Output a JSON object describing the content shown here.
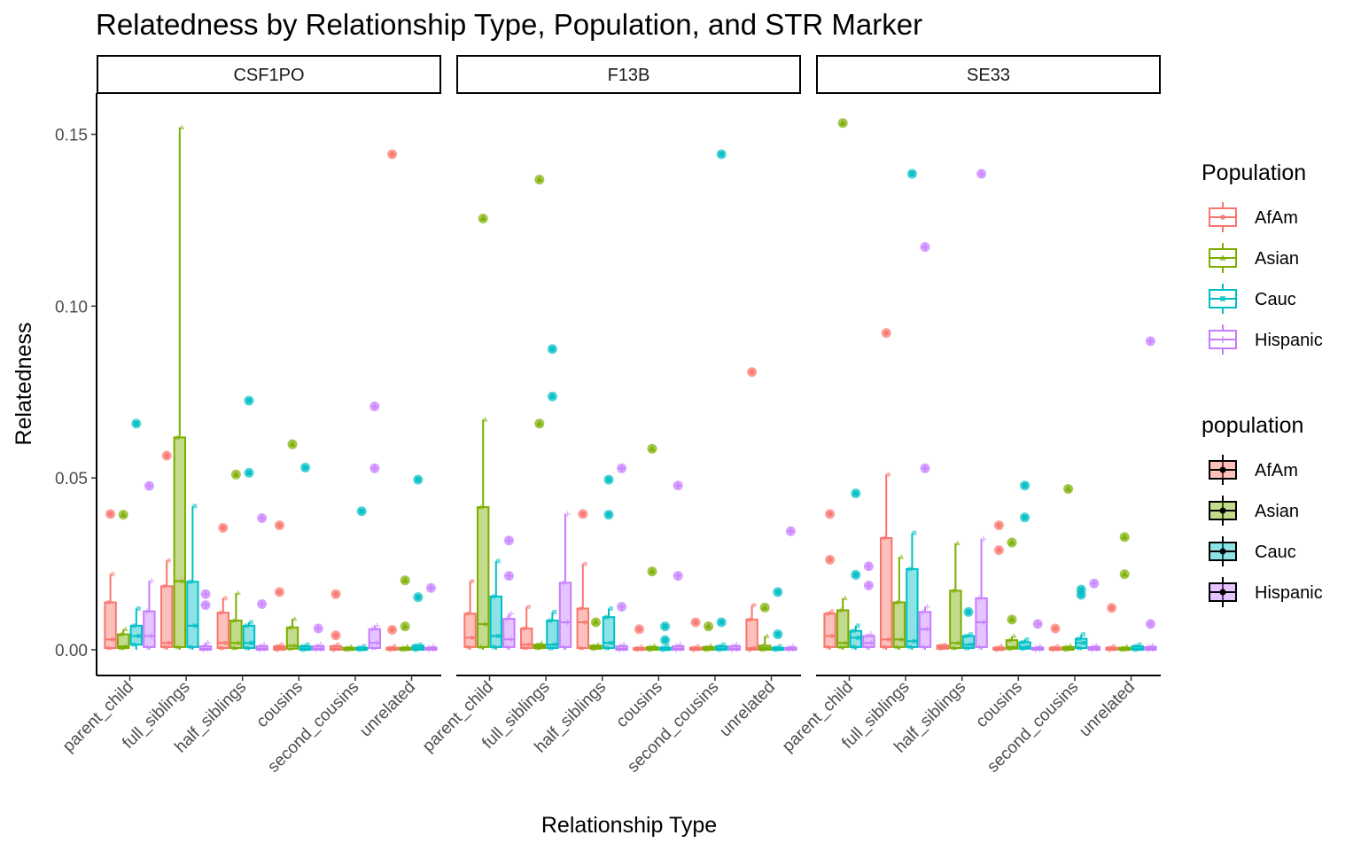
{
  "chart_data": {
    "type": "boxplot",
    "title": "Relatedness by Relationship Type, Population, and STR Marker",
    "xlabel": "Relationship Type",
    "ylabel": "Relatedness",
    "ylim": [
      -0.007,
      0.16
    ],
    "yticks": [
      0.0,
      0.05,
      0.1,
      0.15
    ],
    "ytick_labels": [
      "0.00",
      "0.05",
      "0.10",
      "0.15"
    ],
    "categories": [
      "parent_child",
      "full_siblings",
      "half_siblings",
      "cousins",
      "second_cousins",
      "unrelated"
    ],
    "populations": [
      "AfAm",
      "Asian",
      "Cauc",
      "Hispanic"
    ],
    "colors": {
      "AfAm": "#F8766D",
      "Asian": "#7CAE00",
      "Cauc": "#00BFC4",
      "Hispanic": "#C77CFF"
    },
    "legends": [
      {
        "title": "Population",
        "labels": [
          "AfAm",
          "Asian",
          "Cauc",
          "Hispanic"
        ]
      },
      {
        "title": "population",
        "labels": [
          "AfAm",
          "Asian",
          "Cauc",
          "Hispanic"
        ]
      }
    ],
    "grid": false,
    "legend_position": "right",
    "panels": [
      {
        "marker": "CSF1PO",
        "groups": [
          [
            {
              "q1": 0.0005,
              "median": 0.003,
              "q3": 0.0138,
              "wlow": 0.0,
              "whigh": 0.022,
              "outliers": [
                0.0395
              ]
            },
            {
              "q1": 0.0005,
              "median": 0.001,
              "q3": 0.0045,
              "wlow": 0.0,
              "whigh": 0.006,
              "outliers": [
                0.0393
              ]
            },
            {
              "q1": 0.0015,
              "median": 0.004,
              "q3": 0.007,
              "wlow": 0.0,
              "whigh": 0.012,
              "outliers": [
                0.0658
              ]
            },
            {
              "q1": 0.0008,
              "median": 0.004,
              "q3": 0.0112,
              "wlow": 0.0,
              "whigh": 0.02,
              "outliers": [
                0.0477
              ]
            }
          ],
          [
            {
              "q1": 0.0008,
              "median": 0.002,
              "q3": 0.0185,
              "wlow": 0.0,
              "whigh": 0.026,
              "outliers": [
                0.0565
              ]
            },
            {
              "q1": 0.0008,
              "median": 0.02,
              "q3": 0.0618,
              "wlow": 0.0,
              "whigh": 0.152,
              "outliers": []
            },
            {
              "q1": 0.0008,
              "median": 0.007,
              "q3": 0.0198,
              "wlow": 0.0,
              "whigh": 0.0418,
              "outliers": []
            },
            {
              "q1": 0.0,
              "median": 0.0003,
              "q3": 0.001,
              "wlow": 0.0,
              "whigh": 0.002,
              "outliers": [
                0.0162,
                0.013
              ]
            }
          ],
          [
            {
              "q1": 0.0005,
              "median": 0.002,
              "q3": 0.0108,
              "wlow": 0.0,
              "whigh": 0.015,
              "outliers": [
                0.0355
              ]
            },
            {
              "q1": 0.0005,
              "median": 0.002,
              "q3": 0.0085,
              "wlow": 0.0,
              "whigh": 0.0165,
              "outliers": [
                0.051
              ]
            },
            {
              "q1": 0.0005,
              "median": 0.002,
              "q3": 0.007,
              "wlow": 0.0,
              "whigh": 0.008,
              "outliers": [
                0.0725,
                0.0515
              ]
            },
            {
              "q1": 0.0,
              "median": 0.0003,
              "q3": 0.001,
              "wlow": 0.0,
              "whigh": 0.0015,
              "outliers": [
                0.0383,
                0.0133
              ]
            }
          ],
          [
            {
              "q1": 0.0,
              "median": 0.0005,
              "q3": 0.001,
              "wlow": 0.0,
              "whigh": 0.0015,
              "outliers": [
                0.0362,
                0.0168
              ]
            },
            {
              "q1": 0.0003,
              "median": 0.0012,
              "q3": 0.0065,
              "wlow": 0.0,
              "whigh": 0.009,
              "outliers": [
                0.0598
              ]
            },
            {
              "q1": 0.0,
              "median": 0.0003,
              "q3": 0.001,
              "wlow": 0.0,
              "whigh": 0.0015,
              "outliers": [
                0.053
              ]
            },
            {
              "q1": 0.0,
              "median": 0.0003,
              "q3": 0.001,
              "wlow": 0.0,
              "whigh": 0.0015,
              "outliers": [
                0.0062
              ]
            }
          ],
          [
            {
              "q1": 0.0,
              "median": 0.0003,
              "q3": 0.001,
              "wlow": 0.0,
              "whigh": 0.0015,
              "outliers": [
                0.0162,
                0.0042
              ]
            },
            {
              "q1": 0.0,
              "median": 0.0002,
              "q3": 0.0006,
              "wlow": 0.0,
              "whigh": 0.001,
              "outliers": []
            },
            {
              "q1": 0.0,
              "median": 0.0002,
              "q3": 0.0006,
              "wlow": 0.0,
              "whigh": 0.001,
              "outliers": [
                0.0403
              ]
            },
            {
              "q1": 0.0005,
              "median": 0.002,
              "q3": 0.006,
              "wlow": 0.0,
              "whigh": 0.007,
              "outliers": [
                0.0708,
                0.0528
              ]
            }
          ],
          [
            {
              "q1": 0.0,
              "median": 0.0002,
              "q3": 0.0006,
              "wlow": 0.0,
              "whigh": 0.001,
              "outliers": [
                0.1442,
                0.0058
              ]
            },
            {
              "q1": 0.0,
              "median": 0.0002,
              "q3": 0.0006,
              "wlow": 0.0,
              "whigh": 0.001,
              "outliers": [
                0.0202,
                0.0068
              ]
            },
            {
              "q1": 0.0,
              "median": 0.0005,
              "q3": 0.0012,
              "wlow": 0.0,
              "whigh": 0.0015,
              "outliers": [
                0.0495,
                0.0153
              ]
            },
            {
              "q1": 0.0,
              "median": 0.0002,
              "q3": 0.0006,
              "wlow": 0.0,
              "whigh": 0.001,
              "outliers": [
                0.018
              ]
            }
          ]
        ]
      },
      {
        "marker": "F13B",
        "groups": [
          [
            {
              "q1": 0.0008,
              "median": 0.0035,
              "q3": 0.0105,
              "wlow": 0.0,
              "whigh": 0.02,
              "outliers": []
            },
            {
              "q1": 0.0008,
              "median": 0.0075,
              "q3": 0.0415,
              "wlow": 0.0,
              "whigh": 0.067,
              "outliers": [
                0.1255
              ]
            },
            {
              "q1": 0.0008,
              "median": 0.004,
              "q3": 0.0155,
              "wlow": 0.0,
              "whigh": 0.0258,
              "outliers": []
            },
            {
              "q1": 0.0008,
              "median": 0.003,
              "q3": 0.009,
              "wlow": 0.0,
              "whigh": 0.0105,
              "outliers": [
                0.0318,
                0.0215
              ]
            }
          ],
          [
            {
              "q1": 0.0005,
              "median": 0.0015,
              "q3": 0.0062,
              "wlow": 0.0,
              "whigh": 0.0125,
              "outliers": []
            },
            {
              "q1": 0.0005,
              "median": 0.001,
              "q3": 0.0015,
              "wlow": 0.0,
              "whigh": 0.002,
              "outliers": [
                0.1368,
                0.0658
              ]
            },
            {
              "q1": 0.0005,
              "median": 0.0015,
              "q3": 0.0085,
              "wlow": 0.0,
              "whigh": 0.011,
              "outliers": [
                0.0875,
                0.0737
              ]
            },
            {
              "q1": 0.0008,
              "median": 0.008,
              "q3": 0.0195,
              "wlow": 0.0,
              "whigh": 0.0395,
              "outliers": []
            }
          ],
          [
            {
              "q1": 0.0005,
              "median": 0.008,
              "q3": 0.012,
              "wlow": 0.0,
              "whigh": 0.025,
              "outliers": [
                0.0395
              ]
            },
            {
              "q1": 0.0003,
              "median": 0.0008,
              "q3": 0.0012,
              "wlow": 0.0,
              "whigh": 0.0015,
              "outliers": [
                0.008
              ]
            },
            {
              "q1": 0.0005,
              "median": 0.002,
              "q3": 0.0095,
              "wlow": 0.0,
              "whigh": 0.012,
              "outliers": [
                0.0495,
                0.0393
              ]
            },
            {
              "q1": 0.0,
              "median": 0.0003,
              "q3": 0.001,
              "wlow": 0.0,
              "whigh": 0.0015,
              "outliers": [
                0.0528,
                0.0125
              ]
            }
          ],
          [
            {
              "q1": 0.0,
              "median": 0.0002,
              "q3": 0.0005,
              "wlow": 0.0,
              "whigh": 0.0008,
              "outliers": [
                0.006
              ]
            },
            {
              "q1": 0.0,
              "median": 0.0003,
              "q3": 0.0008,
              "wlow": 0.0,
              "whigh": 0.0012,
              "outliers": [
                0.0585,
                0.0228
              ]
            },
            {
              "q1": 0.0,
              "median": 0.0002,
              "q3": 0.0006,
              "wlow": 0.0,
              "whigh": 0.001,
              "outliers": [
                0.0068,
                0.0028
              ]
            },
            {
              "q1": 0.0,
              "median": 0.0003,
              "q3": 0.001,
              "wlow": 0.0,
              "whigh": 0.0015,
              "outliers": [
                0.0478,
                0.0215
              ]
            }
          ],
          [
            {
              "q1": 0.0,
              "median": 0.0002,
              "q3": 0.0006,
              "wlow": 0.0,
              "whigh": 0.001,
              "outliers": [
                0.008
              ]
            },
            {
              "q1": 0.0,
              "median": 0.0003,
              "q3": 0.0008,
              "wlow": 0.0,
              "whigh": 0.0012,
              "outliers": [
                0.0068
              ]
            },
            {
              "q1": 0.0,
              "median": 0.0003,
              "q3": 0.001,
              "wlow": 0.0,
              "whigh": 0.0015,
              "outliers": [
                0.1442,
                0.008
              ]
            },
            {
              "q1": 0.0,
              "median": 0.0003,
              "q3": 0.001,
              "wlow": 0.0,
              "whigh": 0.0015,
              "outliers": []
            }
          ],
          [
            {
              "q1": 0.0,
              "median": 0.0005,
              "q3": 0.0088,
              "wlow": 0.0,
              "whigh": 0.013,
              "outliers": [
                0.0808
              ]
            },
            {
              "q1": 0.0,
              "median": 0.0005,
              "q3": 0.0012,
              "wlow": 0.0,
              "whigh": 0.004,
              "outliers": [
                0.0123
              ]
            },
            {
              "q1": 0.0,
              "median": 0.0002,
              "q3": 0.0006,
              "wlow": 0.0,
              "whigh": 0.001,
              "outliers": [
                0.0168,
                0.0045
              ]
            },
            {
              "q1": 0.0,
              "median": 0.0002,
              "q3": 0.0006,
              "wlow": 0.0,
              "whigh": 0.001,
              "outliers": [
                0.0345
              ]
            }
          ]
        ]
      },
      {
        "marker": "SE33",
        "groups": [
          [
            {
              "q1": 0.0008,
              "median": 0.004,
              "q3": 0.0105,
              "wlow": 0.0,
              "whigh": 0.0112,
              "outliers": [
                0.0395,
                0.0262
              ]
            },
            {
              "q1": 0.0008,
              "median": 0.002,
              "q3": 0.0115,
              "wlow": 0.0,
              "whigh": 0.015,
              "outliers": [
                0.1533
              ]
            },
            {
              "q1": 0.0008,
              "median": 0.0035,
              "q3": 0.0055,
              "wlow": 0.0,
              "whigh": 0.007,
              "outliers": [
                0.0455,
                0.0218
              ]
            },
            {
              "q1": 0.0008,
              "median": 0.002,
              "q3": 0.004,
              "wlow": 0.0,
              "whigh": 0.0045,
              "outliers": [
                0.0243,
                0.0187
              ]
            }
          ],
          [
            {
              "q1": 0.0008,
              "median": 0.003,
              "q3": 0.0325,
              "wlow": 0.0,
              "whigh": 0.051,
              "outliers": [
                0.0922
              ]
            },
            {
              "q1": 0.0008,
              "median": 0.003,
              "q3": 0.0138,
              "wlow": 0.0,
              "whigh": 0.027,
              "outliers": []
            },
            {
              "q1": 0.0008,
              "median": 0.0025,
              "q3": 0.0235,
              "wlow": 0.0,
              "whigh": 0.034,
              "outliers": [
                0.1385
              ]
            },
            {
              "q1": 0.0008,
              "median": 0.006,
              "q3": 0.011,
              "wlow": 0.0,
              "whigh": 0.0125,
              "outliers": [
                0.1172,
                0.0528
              ]
            }
          ],
          [
            {
              "q1": 0.0003,
              "median": 0.0008,
              "q3": 0.0012,
              "wlow": 0.0,
              "whigh": 0.0015,
              "outliers": []
            },
            {
              "q1": 0.0005,
              "median": 0.002,
              "q3": 0.0172,
              "wlow": 0.0,
              "whigh": 0.031,
              "outliers": []
            },
            {
              "q1": 0.0005,
              "median": 0.0015,
              "q3": 0.004,
              "wlow": 0.0,
              "whigh": 0.0045,
              "outliers": [
                0.011
              ]
            },
            {
              "q1": 0.0008,
              "median": 0.008,
              "q3": 0.015,
              "wlow": 0.0,
              "whigh": 0.0322,
              "outliers": [
                0.1385
              ]
            }
          ],
          [
            {
              "q1": 0.0,
              "median": 0.0002,
              "q3": 0.0006,
              "wlow": 0.0,
              "whigh": 0.001,
              "outliers": [
                0.0362,
                0.029
              ]
            },
            {
              "q1": 0.0003,
              "median": 0.0008,
              "q3": 0.0028,
              "wlow": 0.0,
              "whigh": 0.004,
              "outliers": [
                0.0312,
                0.0088
              ]
            },
            {
              "q1": 0.0003,
              "median": 0.0008,
              "q3": 0.0022,
              "wlow": 0.0,
              "whigh": 0.003,
              "outliers": [
                0.0478,
                0.0385
              ]
            },
            {
              "q1": 0.0,
              "median": 0.0002,
              "q3": 0.0006,
              "wlow": 0.0,
              "whigh": 0.001,
              "outliers": [
                0.0075
              ]
            }
          ],
          [
            {
              "q1": 0.0,
              "median": 0.0002,
              "q3": 0.0006,
              "wlow": 0.0,
              "whigh": 0.001,
              "outliers": [
                0.0062
              ]
            },
            {
              "q1": 0.0,
              "median": 0.0003,
              "q3": 0.0008,
              "wlow": 0.0,
              "whigh": 0.0012,
              "outliers": [
                0.0468
              ]
            },
            {
              "q1": 0.0005,
              "median": 0.002,
              "q3": 0.0032,
              "wlow": 0.0,
              "whigh": 0.0045,
              "outliers": [
                0.0175,
                0.016
              ]
            },
            {
              "q1": 0.0,
              "median": 0.0003,
              "q3": 0.0008,
              "wlow": 0.0,
              "whigh": 0.0012,
              "outliers": [
                0.0193
              ]
            }
          ],
          [
            {
              "q1": 0.0,
              "median": 0.0002,
              "q3": 0.0006,
              "wlow": 0.0,
              "whigh": 0.001,
              "outliers": [
                0.0122
              ]
            },
            {
              "q1": 0.0,
              "median": 0.0002,
              "q3": 0.0006,
              "wlow": 0.0,
              "whigh": 0.001,
              "outliers": [
                0.0328,
                0.022
              ]
            },
            {
              "q1": 0.0,
              "median": 0.0003,
              "q3": 0.001,
              "wlow": 0.0,
              "whigh": 0.0015,
              "outliers": []
            },
            {
              "q1": 0.0,
              "median": 0.0003,
              "q3": 0.0008,
              "wlow": 0.0,
              "whigh": 0.0012,
              "outliers": [
                0.0898,
                0.0075
              ]
            }
          ]
        ]
      }
    ]
  }
}
